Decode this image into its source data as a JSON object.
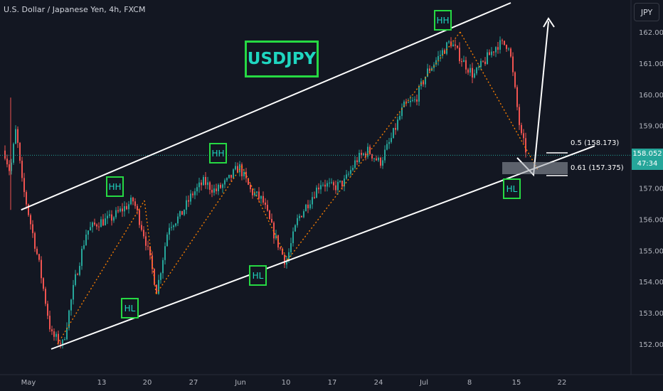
{
  "header": {
    "symbol_line": "U.S. Dollar / Japanese Yen, 4h, FXCM"
  },
  "currency_button": "JPY",
  "title_label": "USDJPY",
  "price_axis": {
    "ticks": [
      "162.000",
      "161.000",
      "160.000",
      "159.000",
      "158.000",
      "157.000",
      "156.000",
      "155.000",
      "154.000",
      "153.000",
      "152.000"
    ]
  },
  "time_axis": {
    "ticks": [
      "May",
      "13",
      "20",
      "27",
      "Jun",
      "10",
      "17",
      "24",
      "Jul",
      "8",
      "15",
      "22"
    ]
  },
  "current_price": {
    "price": "158.052",
    "countdown": "47:34"
  },
  "fib_levels": [
    {
      "label": "0.5 (158.173)"
    },
    {
      "label": "0.61 (157.375)"
    }
  ],
  "pattern_labels": [
    "HH",
    "HH",
    "HH",
    "HL",
    "HL",
    "HL"
  ],
  "colors": {
    "up": "#26a69a",
    "down": "#ef5350",
    "accent_green": "#26d943",
    "title_text": "#1fd6c0",
    "channel": "#ffffff",
    "zigzag": "#f57c00"
  },
  "chart_data": {
    "type": "candlestick",
    "title": "U.S. Dollar / Japanese Yen, 4h, FXCM",
    "ylim": [
      151.75,
      162.3
    ],
    "x": [
      "May",
      "13",
      "20",
      "27",
      "Jun",
      "10",
      "17",
      "24",
      "Jul",
      "8",
      "15",
      "22"
    ],
    "price_path": [
      {
        "t": 0.0,
        "p": 158.2
      },
      {
        "t": 0.5,
        "p": 157.5
      },
      {
        "t": 1.0,
        "p": 158.9
      },
      {
        "t": 1.5,
        "p": 157.2
      },
      {
        "t": 2.0,
        "p": 156.3
      },
      {
        "t": 3.0,
        "p": 154.5
      },
      {
        "t": 4.0,
        "p": 152.3
      },
      {
        "t": 5.0,
        "p": 152.0
      },
      {
        "t": 6.0,
        "p": 154.0
      },
      {
        "t": 7.0,
        "p": 155.6
      },
      {
        "t": 8.0,
        "p": 155.9
      },
      {
        "t": 9.0,
        "p": 156.0
      },
      {
        "t": 10.0,
        "p": 156.3
      },
      {
        "t": 11.0,
        "p": 156.6
      },
      {
        "t": 12.0,
        "p": 155.4
      },
      {
        "t": 13.0,
        "p": 153.7
      },
      {
        "t": 14.0,
        "p": 155.8
      },
      {
        "t": 15.0,
        "p": 156.1
      },
      {
        "t": 16.0,
        "p": 156.8
      },
      {
        "t": 17.0,
        "p": 157.2
      },
      {
        "t": 18.0,
        "p": 156.9
      },
      {
        "t": 19.0,
        "p": 157.2
      },
      {
        "t": 20.0,
        "p": 157.7
      },
      {
        "t": 21.0,
        "p": 156.9
      },
      {
        "t": 22.0,
        "p": 156.6
      },
      {
        "t": 23.0,
        "p": 155.5
      },
      {
        "t": 24.0,
        "p": 154.6
      },
      {
        "t": 25.0,
        "p": 156.0
      },
      {
        "t": 26.0,
        "p": 156.6
      },
      {
        "t": 27.0,
        "p": 157.2
      },
      {
        "t": 28.0,
        "p": 157.0
      },
      {
        "t": 29.0,
        "p": 157.2
      },
      {
        "t": 30.0,
        "p": 157.9
      },
      {
        "t": 31.0,
        "p": 158.2
      },
      {
        "t": 32.0,
        "p": 157.8
      },
      {
        "t": 33.0,
        "p": 158.6
      },
      {
        "t": 34.0,
        "p": 159.6
      },
      {
        "t": 35.0,
        "p": 159.8
      },
      {
        "t": 36.0,
        "p": 160.7
      },
      {
        "t": 37.0,
        "p": 161.2
      },
      {
        "t": 38.0,
        "p": 161.7
      },
      {
        "t": 39.0,
        "p": 161.1
      },
      {
        "t": 40.0,
        "p": 160.6
      },
      {
        "t": 41.0,
        "p": 161.1
      },
      {
        "t": 42.0,
        "p": 161.6
      },
      {
        "t": 43.0,
        "p": 161.6
      },
      {
        "t": 44.0,
        "p": 158.7
      },
      {
        "t": 45.0,
        "p": 157.6
      },
      {
        "t": 46.0,
        "p": 158.1
      }
    ],
    "channel_upper": [
      {
        "t": 1.5,
        "p": 156.3
      },
      {
        "t": 48.0,
        "p": 162.6
      }
    ],
    "channel_lower": [
      {
        "t": 2.5,
        "p": 151.8
      },
      {
        "t": 50.0,
        "p": 158.4
      }
    ],
    "zigzag": [
      {
        "t": 4.6,
        "p": 152.0
      },
      {
        "t": 12.0,
        "p": 156.6
      },
      {
        "t": 13.0,
        "p": 153.6
      },
      {
        "t": 20.3,
        "p": 157.7
      },
      {
        "t": 24.2,
        "p": 154.7
      },
      {
        "t": 38.9,
        "p": 162.0
      },
      {
        "t": 45.5,
        "p": 157.6
      }
    ],
    "projection": [
      {
        "t": 47.2,
        "p": 157.4
      },
      {
        "t": 48.6,
        "p": 158.0
      },
      {
        "t": 49.2,
        "p": 161.8
      }
    ],
    "fib_zone": {
      "upper": 157.62,
      "lower": 157.375
    }
  }
}
